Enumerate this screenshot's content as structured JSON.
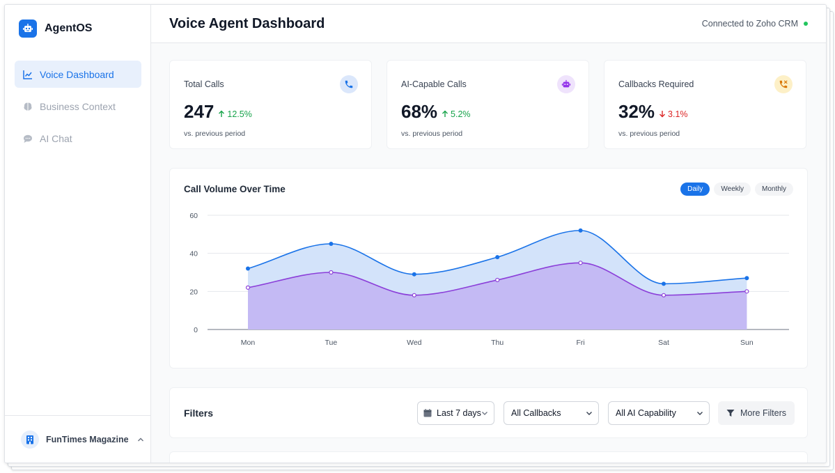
{
  "app": {
    "name": "AgentOS"
  },
  "sidebar": {
    "items": [
      {
        "label": "Voice Dashboard",
        "icon": "line-chart-icon",
        "active": true
      },
      {
        "label": "Business Context",
        "icon": "brain-icon",
        "active": false
      },
      {
        "label": "AI Chat",
        "icon": "chat-bubble-icon",
        "active": false
      }
    ],
    "org": {
      "name": "FunTimes Magazine",
      "icon": "building-icon"
    }
  },
  "header": {
    "title": "Voice Agent Dashboard",
    "connection": "Connected to Zoho CRM",
    "connection_color": "#22c55e"
  },
  "stats": [
    {
      "label": "Total Calls",
      "value": "247",
      "delta": "12.5%",
      "direction": "up",
      "sub": "vs. previous period",
      "icon": "phone-icon",
      "icon_bg": "#dbe7fb",
      "icon_color": "#1a73e8"
    },
    {
      "label": "AI-Capable Calls",
      "value": "68%",
      "delta": "5.2%",
      "direction": "up",
      "sub": "vs. previous period",
      "icon": "robot-icon",
      "icon_bg": "#efe3fc",
      "icon_color": "#9333ea"
    },
    {
      "label": "Callbacks Required",
      "value": "32%",
      "delta": "3.1%",
      "direction": "down",
      "sub": "vs. previous period",
      "icon": "phone-callback-icon",
      "icon_bg": "#fdf0c7",
      "icon_color": "#d97706"
    }
  ],
  "chart": {
    "title": "Call Volume Over Time",
    "ranges": [
      {
        "label": "Daily",
        "active": true
      },
      {
        "label": "Weekly",
        "active": false
      },
      {
        "label": "Monthly",
        "active": false
      }
    ]
  },
  "chart_data": {
    "type": "area",
    "title": "Call Volume Over Time",
    "categories": [
      "Mon",
      "Tue",
      "Wed",
      "Thu",
      "Fri",
      "Sat",
      "Sun"
    ],
    "series": [
      {
        "values": [
          32,
          45,
          29,
          38,
          52,
          24,
          27
        ],
        "color": "#1a73e8"
      },
      {
        "values": [
          22,
          30,
          18,
          26,
          35,
          18,
          20
        ],
        "color": "#8b3fd9"
      }
    ],
    "ylim": [
      0,
      60
    ],
    "yticks": [
      0,
      20,
      40,
      60
    ],
    "grid": true
  },
  "filters": {
    "title": "Filters",
    "date_range": "Last 7 days",
    "callbacks": "All Callbacks",
    "ai_capability": "All AI Capability",
    "more_label": "More Filters"
  }
}
